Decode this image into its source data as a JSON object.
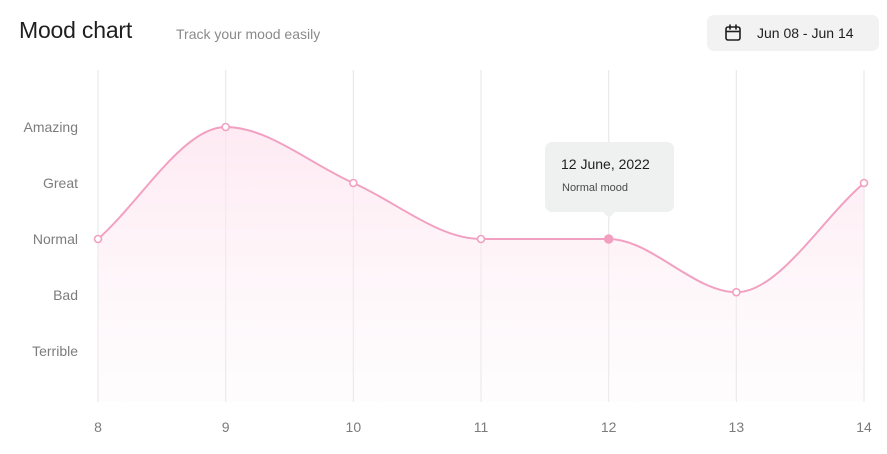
{
  "header": {
    "title": "Mood chart",
    "subtitle": "Track your mood easily",
    "date_range": "Jun 08 - Jun 14",
    "date_icon": "calendar-icon"
  },
  "tooltip": {
    "date": "12 June, 2022",
    "mood": "Normal mood",
    "x": 12
  },
  "colors": {
    "line": "#f2a0c2",
    "fill": "#fde9f1",
    "grid": "#e9e9e9",
    "point_fill": "#ffffff",
    "active_point": "#f2a0c2"
  },
  "chart_data": {
    "type": "line",
    "x": [
      8,
      9,
      10,
      11,
      12,
      13,
      14
    ],
    "y_categories": [
      "Terrible",
      "Bad",
      "Normal",
      "Great",
      "Amazing"
    ],
    "values": [
      3,
      5,
      4,
      3,
      3,
      2.05,
      4
    ],
    "x_ticks": [
      "8",
      "9",
      "10",
      "11",
      "12",
      "13",
      "14"
    ],
    "grid": "vertical",
    "smooth": true,
    "area_fill": true
  }
}
